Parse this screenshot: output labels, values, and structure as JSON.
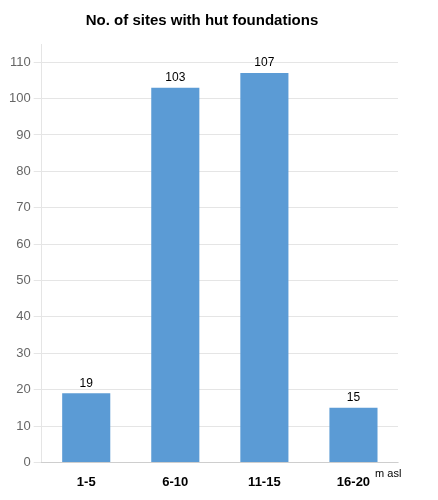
{
  "chart_data": {
    "type": "bar",
    "title": "No. of sites with hut foundations",
    "categories": [
      "1-5",
      "6-10",
      "11-15",
      "16-20"
    ],
    "values": [
      19,
      103,
      107,
      15
    ],
    "color": "#5b9bd5",
    "ylim": [
      0,
      115
    ],
    "yticks": [
      0,
      10,
      20,
      30,
      40,
      50,
      60,
      70,
      80,
      90,
      100,
      110
    ],
    "data_labels": true,
    "grid": true,
    "annotations": [
      "m asl"
    ]
  }
}
